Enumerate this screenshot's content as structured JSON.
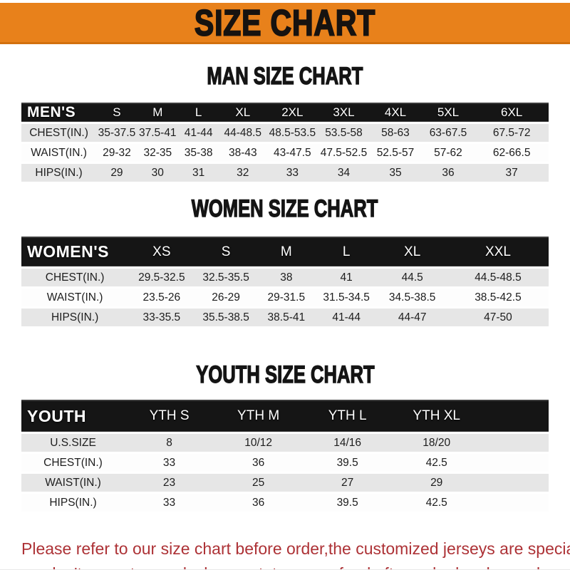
{
  "banner": {
    "title": "SIZE CHART",
    "bg_color": "#e8811b",
    "text_color": "#171310"
  },
  "colors": {
    "header_bar": "#151515",
    "row_stripe": "#e6e6e6",
    "note_red": "#ad3236"
  },
  "sections": {
    "men": {
      "heading": "MAN SIZE CHART",
      "header_label": "MEN'S",
      "headers": [
        "S",
        "M",
        "L",
        "XL",
        "2XL",
        "3XL",
        "4XL",
        "5XL",
        "6XL"
      ],
      "rows": [
        {
          "label": "CHEST(IN.)",
          "values": [
            "35-37.5",
            "37.5-41",
            "41-44",
            "44-48.5",
            "48.5-53.5",
            "53.5-58",
            "58-63",
            "63-67.5",
            "67.5-72"
          ]
        },
        {
          "label": "WAIST(IN.)",
          "values": [
            "29-32",
            "32-35",
            "35-38",
            "38-43",
            "43-47.5",
            "47.5-52.5",
            "52.5-57",
            "57-62",
            "62-66.5"
          ]
        },
        {
          "label": "HIPS(IN.)",
          "values": [
            "29",
            "30",
            "31",
            "32",
            "33",
            "34",
            "35",
            "36",
            "37"
          ]
        }
      ]
    },
    "women": {
      "heading": "WOMEN SIZE CHART",
      "header_label": "WOMEN'S",
      "headers": [
        "XS",
        "S",
        "M",
        "L",
        "XL",
        "XXL"
      ],
      "rows": [
        {
          "label": "CHEST(IN.)",
          "values": [
            "29.5-32.5",
            "32.5-35.5",
            "38",
            "41",
            "44.5",
            "44.5-48.5"
          ]
        },
        {
          "label": "WAIST(IN.)",
          "values": [
            "23.5-26",
            "26-29",
            "29-31.5",
            "31.5-34.5",
            "34.5-38.5",
            "38.5-42.5"
          ]
        },
        {
          "label": "HIPS(IN.)",
          "values": [
            "33-35.5",
            "35.5-38.5",
            "38.5-41",
            "41-44",
            "44-47",
            "47-50"
          ]
        }
      ]
    },
    "youth": {
      "heading": "YOUTH SIZE CHART",
      "header_label": "YOUTH",
      "headers": [
        "YTH S",
        "YTH M",
        "YTH L",
        "YTH XL"
      ],
      "rows": [
        {
          "label": "U.S.SIZE",
          "values": [
            "8",
            "10/12",
            "14/16",
            "18/20"
          ]
        },
        {
          "label": "CHEST(IN.)",
          "values": [
            "33",
            "36",
            "39.5",
            "42.5"
          ]
        },
        {
          "label": "WAIST(IN.)",
          "values": [
            "23",
            "25",
            "27",
            "29"
          ]
        },
        {
          "label": "HIPS(IN.)",
          "values": [
            "33",
            "36",
            "39.5",
            "42.5"
          ]
        }
      ]
    }
  },
  "note": {
    "line1": "Please refer to our size chart before order,the customized jerseys are special products,",
    "line2": "we don't accept cancel, change, teturn or refund after order has been placed!"
  }
}
